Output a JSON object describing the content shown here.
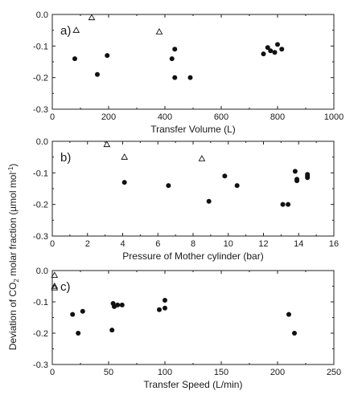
{
  "ylabel": "Deviation of CO2 molar fraction (µmol mol⁻¹)",
  "ylabel_main": "Deviation of CO",
  "ylabel_sub": "2",
  "ylabel_rest": " molar fraction (µmol mol",
  "ylabel_sup": "-1",
  "ylabel_close": ")",
  "colors": {
    "filled": "#111111",
    "axis": "#222222"
  },
  "chart_data": [
    {
      "type": "scatter",
      "panel_label": "a)",
      "xlabel": "Transfer Volume (L)",
      "ylabel": "",
      "xlim": [
        0,
        1000
      ],
      "ylim": [
        -0.3,
        0.0
      ],
      "xticks": [
        0,
        200,
        400,
        600,
        800,
        1000
      ],
      "yticks": [
        0.0,
        -0.1,
        -0.2,
        -0.3
      ],
      "xtick_labels": [
        "0",
        "200",
        "400",
        "600",
        "800",
        "1000"
      ],
      "ytick_labels": [
        "0.0",
        "-0.1",
        "-0.2",
        "-0.3"
      ],
      "series": [
        {
          "marker": "filled-circle",
          "points": [
            [
              80,
              -0.14
            ],
            [
              160,
              -0.19
            ],
            [
              195,
              -0.13
            ],
            [
              425,
              -0.14
            ],
            [
              435,
              -0.11
            ],
            [
              435,
              -0.2
            ],
            [
              490,
              -0.2
            ],
            [
              750,
              -0.125
            ],
            [
              765,
              -0.105
            ],
            [
              775,
              -0.115
            ],
            [
              790,
              -0.12
            ],
            [
              800,
              -0.095
            ],
            [
              815,
              -0.11
            ]
          ]
        },
        {
          "marker": "open-triangle",
          "points": [
            [
              85,
              -0.05
            ],
            [
              140,
              -0.01
            ],
            [
              380,
              -0.055
            ]
          ]
        }
      ]
    },
    {
      "type": "scatter",
      "panel_label": "b)",
      "xlabel": "Pressure of Mother cylinder (bar)",
      "ylabel": "",
      "xlim": [
        0,
        16
      ],
      "ylim": [
        -0.3,
        0.0
      ],
      "xticks": [
        0,
        2,
        4,
        6,
        8,
        10,
        12,
        14,
        16
      ],
      "yticks": [
        0.0,
        -0.1,
        -0.2,
        -0.3
      ],
      "xtick_labels": [
        "0",
        "2",
        "4",
        "6",
        "8",
        "10",
        "12",
        "14",
        "16"
      ],
      "ytick_labels": [
        "0.0",
        "-0.1",
        "-0.2",
        "-0.3"
      ],
      "series": [
        {
          "marker": "filled-circle",
          "points": [
            [
              4.1,
              -0.13
            ],
            [
              6.6,
              -0.14
            ],
            [
              8.9,
              -0.19
            ],
            [
              9.8,
              -0.11
            ],
            [
              10.5,
              -0.14
            ],
            [
              13.1,
              -0.2
            ],
            [
              13.4,
              -0.2
            ],
            [
              13.8,
              -0.095
            ],
            [
              13.9,
              -0.12
            ],
            [
              13.9,
              -0.125
            ],
            [
              14.5,
              -0.105
            ],
            [
              14.5,
              -0.11
            ],
            [
              14.5,
              -0.115
            ]
          ]
        },
        {
          "marker": "open-triangle",
          "points": [
            [
              3.1,
              -0.01
            ],
            [
              4.1,
              -0.05
            ],
            [
              8.5,
              -0.055
            ]
          ]
        }
      ]
    },
    {
      "type": "scatter",
      "panel_label": "c)",
      "xlabel": "Transfer Speed (L/min)",
      "ylabel": "",
      "xlim": [
        0,
        250
      ],
      "ylim": [
        -0.3,
        0.0
      ],
      "xticks": [
        0,
        50,
        100,
        150,
        200,
        250
      ],
      "yticks": [
        0.0,
        -0.1,
        -0.2,
        -0.3
      ],
      "xtick_labels": [
        "0",
        "50",
        "100",
        "150",
        "200",
        "250"
      ],
      "ytick_labels": [
        "0.0",
        "-0.1",
        "-0.2",
        "-0.3"
      ],
      "series": [
        {
          "marker": "filled-circle",
          "points": [
            [
              18,
              -0.14
            ],
            [
              23,
              -0.2
            ],
            [
              27,
              -0.13
            ],
            [
              53,
              -0.19
            ],
            [
              54,
              -0.105
            ],
            [
              55,
              -0.115
            ],
            [
              58,
              -0.11
            ],
            [
              62,
              -0.11
            ],
            [
              95,
              -0.125
            ],
            [
              100,
              -0.12
            ],
            [
              100,
              -0.095
            ],
            [
              210,
              -0.14
            ],
            [
              215,
              -0.2
            ]
          ]
        },
        {
          "marker": "open-triangle",
          "points": [
            [
              2,
              -0.015
            ],
            [
              2,
              -0.05
            ],
            [
              2,
              -0.055
            ]
          ]
        }
      ]
    }
  ]
}
